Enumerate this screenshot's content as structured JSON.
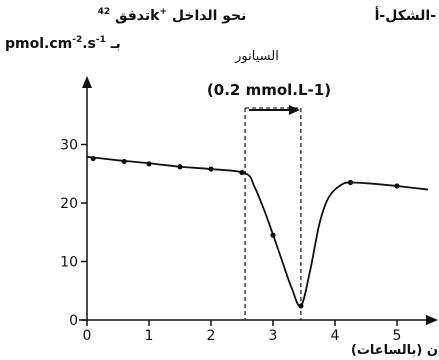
{
  "figure_label": "الشكل-أ-",
  "ylabel_line1_prefix": "تدفق ",
  "ylabel_line1_sup": "42",
  "ylabel_line1_k": "k",
  "ylabel_line1_plus": "+",
  "ylabel_line1_suffix": " نحو الداخل",
  "ylabel_line2_prefix": "pmol.cm",
  "ylabel_line2_sup1": "-2",
  "ylabel_line2_mid": ".s",
  "ylabel_line2_sup2": "-1",
  "ylabel_line2_suffix": " بـ",
  "annotation_name": "السيانور",
  "annotation_conc": "(0.2 mmol.L-1)",
  "xlabel": "ن (بالساعات)",
  "chart_data": {
    "type": "line",
    "x_ticks": [
      0,
      1,
      2,
      3,
      4,
      5
    ],
    "y_ticks": [
      0,
      10,
      20,
      30
    ],
    "xlim": [
      0,
      5.5
    ],
    "ylim": [
      0,
      34
    ],
    "grid": false,
    "treatment_window": [
      2.55,
      3.45
    ],
    "points_x": [
      0.1,
      0.6,
      1.0,
      1.5,
      2.0,
      2.5,
      3.0,
      3.45,
      4.25,
      5.0
    ],
    "points_y": [
      27.6,
      27.1,
      26.7,
      26.2,
      25.8,
      25.2,
      14.5,
      2.4,
      23.5,
      22.9
    ],
    "curve": [
      [
        0.0,
        27.9
      ],
      [
        0.5,
        27.3
      ],
      [
        1.0,
        26.8
      ],
      [
        1.5,
        26.2
      ],
      [
        2.0,
        25.8
      ],
      [
        2.55,
        25.1
      ],
      [
        2.7,
        22.8
      ],
      [
        2.85,
        19.0
      ],
      [
        3.0,
        14.6
      ],
      [
        3.15,
        10.0
      ],
      [
        3.3,
        5.5
      ],
      [
        3.45,
        2.4
      ],
      [
        3.6,
        8.5
      ],
      [
        3.75,
        16.5
      ],
      [
        3.9,
        21.0
      ],
      [
        4.1,
        23.1
      ],
      [
        4.25,
        23.5
      ],
      [
        4.6,
        23.3
      ],
      [
        5.0,
        22.9
      ],
      [
        5.5,
        22.3
      ]
    ]
  }
}
